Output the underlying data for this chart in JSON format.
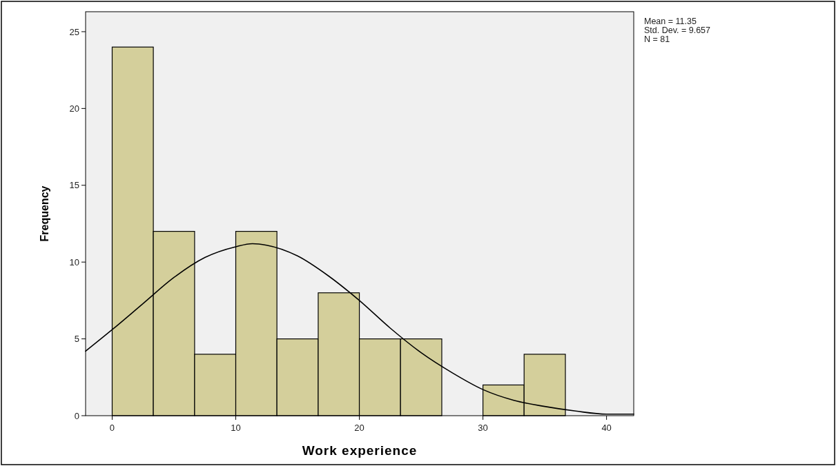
{
  "chart_data": {
    "type": "histogram",
    "xlabel": "Work experience",
    "ylabel": "Frequency",
    "bins": [
      0,
      3.33,
      6.67,
      10,
      13.33,
      16.67,
      20,
      23.33,
      26.67,
      30,
      33.33,
      36.67
    ],
    "values": [
      24,
      12,
      4,
      12,
      5,
      8,
      5,
      5,
      0,
      2,
      4
    ],
    "color": "#d4cf9b",
    "series": [
      {
        "type": "line",
        "color": "#000000",
        "x": [
          -2.15,
          0,
          2.5,
          5,
          7.5,
          10,
          11.35,
          12.5,
          15,
          17.5,
          20,
          22.5,
          25,
          27.5,
          30,
          32.5,
          35,
          37.5,
          40,
          42.2
        ],
        "values": [
          4.2,
          5.6,
          7.3,
          9.0,
          10.3,
          11.0,
          11.2,
          11.1,
          10.4,
          9.1,
          7.5,
          5.7,
          4.1,
          2.8,
          1.7,
          1.0,
          0.6,
          0.3,
          0.1,
          0.1
        ]
      }
    ],
    "xlim": [
      -2.15,
      42.2
    ],
    "xticks": [
      0,
      10,
      20,
      30,
      40
    ],
    "ylim": [
      0,
      26.3
    ],
    "yticks": [
      0,
      5,
      10,
      15,
      20,
      25
    ],
    "grid": false,
    "annotations": [
      "Mean = 11.35",
      "Std. Dev. = 9.657",
      "N = 81"
    ]
  }
}
